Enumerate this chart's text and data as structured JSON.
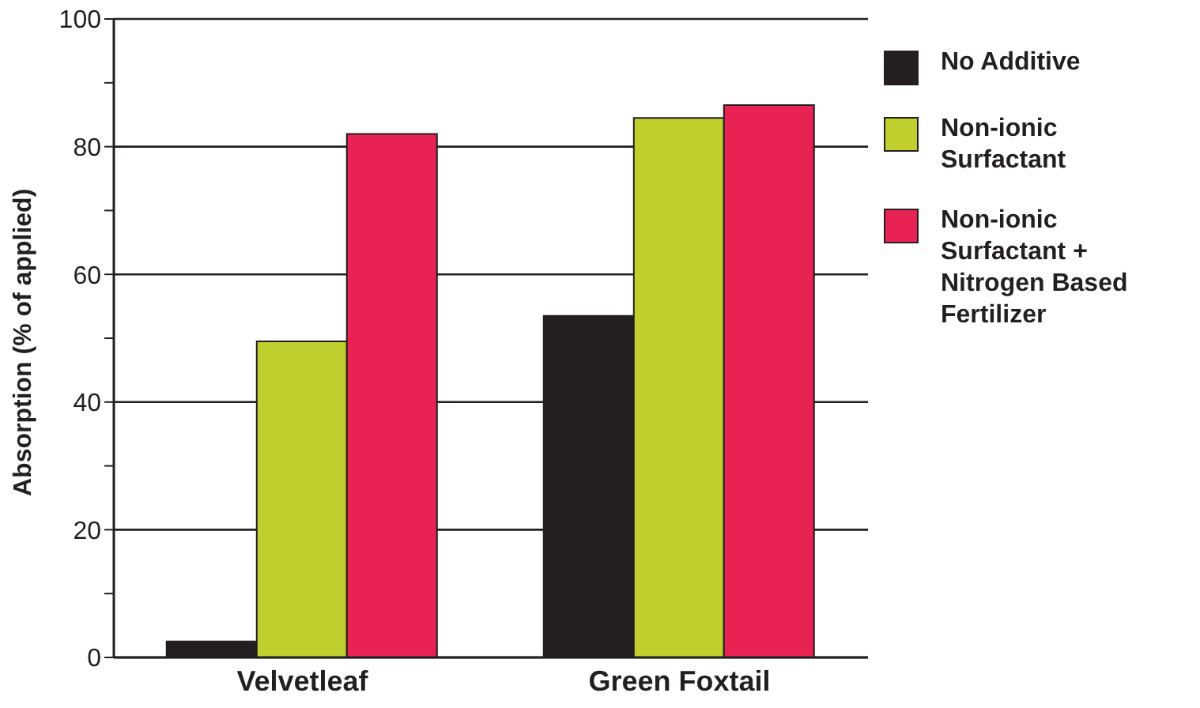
{
  "chart_data": {
    "type": "bar",
    "ylabel": "Absorption (% of applied)",
    "categories": [
      "Velvetleaf",
      "Green Foxtail"
    ],
    "series": [
      {
        "name": "No Additive",
        "color": "#231f20",
        "values": [
          2.5,
          53.5
        ]
      },
      {
        "name": "Non-ionic Surfactant",
        "color": "#c0cf2e",
        "values": [
          49.5,
          84.5
        ]
      },
      {
        "name": "Non-ionic Surfactant + Nitrogen Based Fertilizer",
        "color": "#e82253",
        "values": [
          82,
          86.5
        ]
      }
    ],
    "ylim": [
      0,
      100
    ],
    "yticks": [
      0,
      {
        "value": 10,
        "label": null
      },
      20,
      {
        "value": 30,
        "label": null
      },
      40,
      {
        "value": 50,
        "label": null
      },
      60,
      {
        "value": 70,
        "label": null
      },
      80,
      {
        "value": 90,
        "label": null
      },
      100
    ],
    "grid": "y",
    "legend": "right"
  }
}
